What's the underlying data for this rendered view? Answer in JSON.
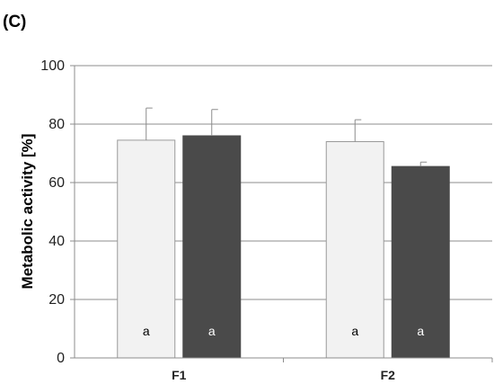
{
  "panel_label": "(C)",
  "chart_data": {
    "type": "bar",
    "title": "",
    "xlabel": "",
    "ylabel": "Metabolic activity [%]",
    "ylim": [
      0,
      100
    ],
    "yticks": [
      0,
      20,
      40,
      60,
      80,
      100
    ],
    "grid": true,
    "categories": [
      "F1",
      "F2"
    ],
    "series": [
      {
        "color": "#f2f2f2",
        "values": [
          74.5,
          74.0
        ],
        "errors": [
          11.0,
          7.5
        ],
        "labels": [
          "a",
          "a"
        ]
      },
      {
        "color": "#4a4a4a",
        "values": [
          76.0,
          65.5
        ],
        "errors": [
          9.0,
          1.5
        ],
        "labels": [
          "a",
          "a"
        ]
      }
    ]
  }
}
